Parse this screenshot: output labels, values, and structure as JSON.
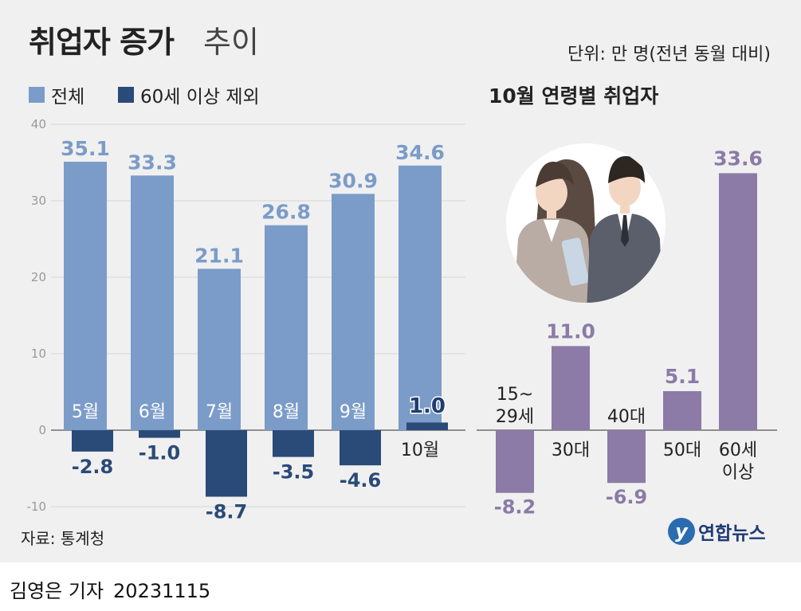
{
  "header": {
    "title_bold": "취업자 증가",
    "title_light": "추이",
    "unit": "단위: 만 명(전년 동월 대비)"
  },
  "legend": [
    {
      "label": "전체",
      "color": "#7b9cc8"
    },
    {
      "label": "60세 이상 제외",
      "color": "#2a4a78"
    }
  ],
  "right_title": "10월 연령별 취업자",
  "source": "자료: 통계청",
  "byline": {
    "reporter": "김영은 기자",
    "date": "20231115"
  },
  "logo": {
    "mark": "y",
    "name": "연합뉴스"
  },
  "illustration": {
    "name": "office-workers-illustration"
  },
  "chart_data": [
    {
      "type": "bar",
      "categories": [
        "5월",
        "6월",
        "7월",
        "8월",
        "9월",
        "10월"
      ],
      "series": [
        {
          "name": "전체",
          "values": [
            35.1,
            33.3,
            21.1,
            26.8,
            30.9,
            34.6
          ],
          "labels": [
            "35.1",
            "33.3",
            "21.1",
            "26.8",
            "30.9",
            "34.6"
          ],
          "color": "#7b9cc8"
        },
        {
          "name": "60세 이상 제외",
          "values": [
            -2.8,
            -1.0,
            -8.7,
            -3.5,
            -4.6,
            1.0
          ],
          "labels": [
            "-2.8",
            "-1.0",
            "-8.7",
            "-3.5",
            "-4.6",
            "1.0"
          ],
          "color": "#2a4a78"
        }
      ],
      "yticks": [
        "40",
        "30",
        "20",
        "10",
        "0",
        "-10"
      ],
      "ylim": [
        -10,
        40
      ],
      "grid": true
    },
    {
      "type": "bar",
      "categories": [
        "15~\n29세",
        "30대",
        "40대",
        "50대",
        "60세\n이상"
      ],
      "values": [
        -8.2,
        11.0,
        -6.9,
        5.1,
        33.6
      ],
      "labels": [
        "-8.2",
        "11.0",
        "-6.9",
        "5.1",
        "33.6"
      ],
      "color": "#8b7ba6",
      "ylim": [
        -10,
        40
      ]
    }
  ]
}
